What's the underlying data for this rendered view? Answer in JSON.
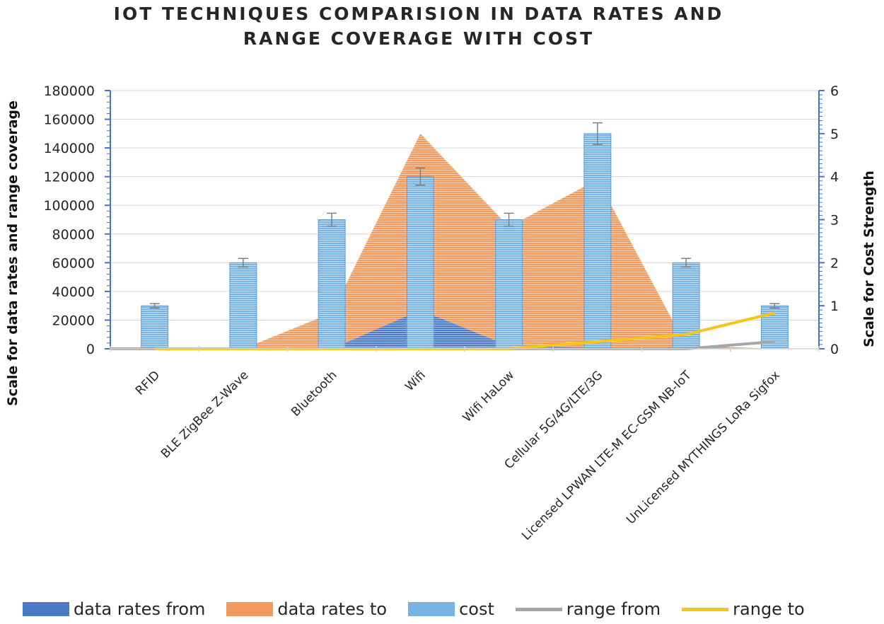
{
  "colors": {
    "data_rates_from": "#4a7bc8",
    "data_rates_to": "#f29a5e",
    "cost": "#79b3e3",
    "range_from": "#a6a6a6",
    "range_to": "#f5c518",
    "gridline": "#d9d9d9",
    "axis": "#4472c4"
  },
  "chart_data": {
    "type": "combo",
    "title_line1": "IOT TECHNIQUES COMPARISION IN DATA RATES AND",
    "title_line2": "RANGE COVERAGE WITH COST",
    "ylabel_left": "Scale for data rates and range coverage",
    "ylabel_right": "Scale for Cost Strength",
    "ylim_left": [
      0,
      180000
    ],
    "ylim_right": [
      0,
      6
    ],
    "yticks_left": [
      "0",
      "20000",
      "40000",
      "60000",
      "80000",
      "100000",
      "120000",
      "140000",
      "160000",
      "180000"
    ],
    "yticks_right": [
      "0",
      "1",
      "2",
      "3",
      "4",
      "5",
      "6"
    ],
    "categories": [
      "RFID",
      "BLE ZigBee Z-Wave",
      "Bluetooth",
      "Wifi",
      "Wifi HaLow",
      "Cellular 5G/4G/LTE/3G",
      "Licensed LPWAN LTE-M EC-GSM NB-IoT",
      "UnLicensed MYTHINGS LoRa Sigfox"
    ],
    "series": [
      {
        "name": "data rates from",
        "type": "area",
        "axis": "left",
        "values": [
          0,
          0,
          0,
          27000,
          2000,
          1000,
          500,
          100
        ]
      },
      {
        "name": "data rates to",
        "type": "area",
        "axis": "left",
        "values": [
          0,
          0,
          25000,
          150000,
          85000,
          118000,
          2000,
          200
        ]
      },
      {
        "name": "cost",
        "type": "bar",
        "axis": "right",
        "values": [
          1,
          2,
          3,
          4,
          3,
          5,
          2,
          1
        ],
        "error": [
          0.05,
          0.1,
          0.15,
          0.2,
          0.15,
          0.25,
          0.1,
          0.05
        ]
      },
      {
        "name": "range from",
        "type": "line",
        "axis": "left",
        "values": [
          0,
          0,
          0,
          0,
          0,
          0,
          0,
          5000
        ]
      },
      {
        "name": "range to",
        "type": "line",
        "axis": "left",
        "values": [
          0,
          0,
          0,
          0,
          100,
          5000,
          10000,
          25000
        ]
      }
    ],
    "legend": [
      "data rates from",
      "data rates to",
      "cost",
      "range from",
      "range to"
    ],
    "legend_position": "bottom",
    "grid": true
  }
}
